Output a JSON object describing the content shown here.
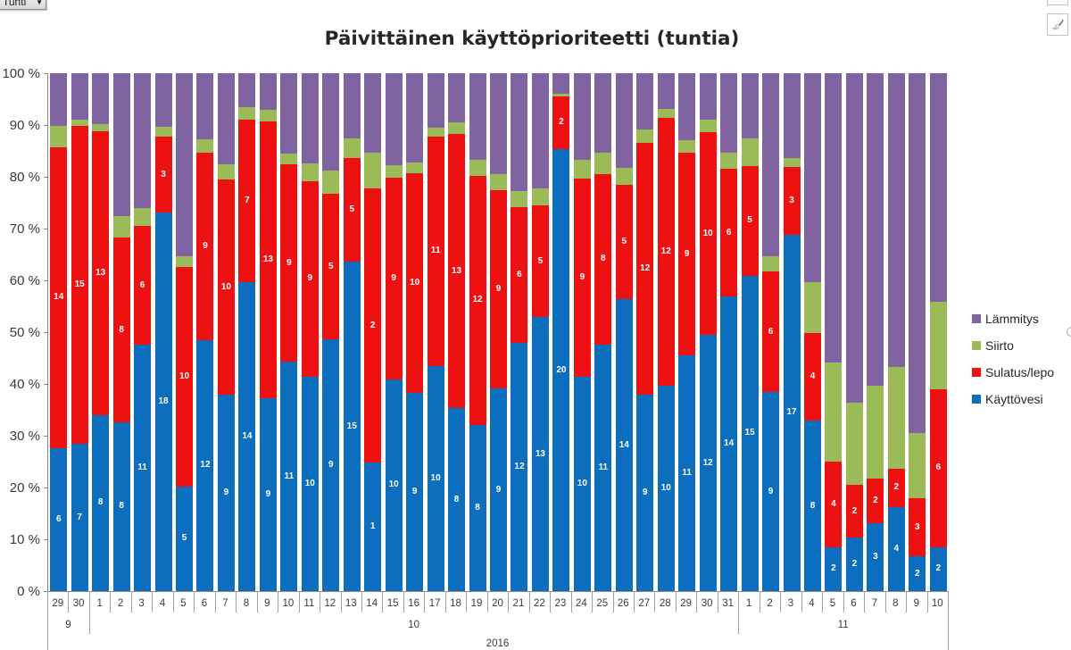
{
  "pivot_filter": {
    "label": "Tunti",
    "arrow": "▼"
  },
  "chart": {
    "title": "Päivittäinen käyttöprioriteetti (tuntia)",
    "buttons": [
      {
        "name": "chart-elements-button",
        "icon": "plus-icon-cut-off"
      },
      {
        "name": "chart-styles-button",
        "icon": "paintbrush-icon"
      }
    ]
  },
  "y_axis": {
    "tick_labels": [
      "100 %",
      "90 %",
      "80 %",
      "70 %",
      "60 %",
      "50 %",
      "40 %",
      "30 %",
      "20 %",
      "10 %",
      "0 %"
    ],
    "min": 0,
    "max": 100,
    "step": 10,
    "format": "percent"
  },
  "x_axis": {
    "day_labels": [
      "29",
      "30",
      "1",
      "2",
      "3",
      "4",
      "5",
      "6",
      "7",
      "8",
      "9",
      "10",
      "11",
      "12",
      "13",
      "14",
      "15",
      "16",
      "17",
      "18",
      "19",
      "20",
      "21",
      "22",
      "23",
      "24",
      "25",
      "26",
      "27",
      "28",
      "29",
      "30",
      "31",
      "1",
      "2",
      "3",
      "4",
      "5",
      "6",
      "7",
      "8",
      "9",
      "10"
    ],
    "month_groups": [
      {
        "label": "9",
        "span": 2
      },
      {
        "label": "10",
        "span": 31
      },
      {
        "label": "11",
        "span": 10
      }
    ],
    "year_label": "2016"
  },
  "legend": {
    "position": "right",
    "items": [
      {
        "label": "Lämmitys",
        "color": "#8064A2"
      },
      {
        "label": "Siirto",
        "color": "#9BBB59"
      },
      {
        "label": "Sulatus/lepo",
        "color": "#EE1111"
      },
      {
        "label": "Käyttövesi",
        "color": "#0D6EBD"
      }
    ]
  },
  "chart_data": {
    "type": "bar",
    "subtype": "stacked-100-percent",
    "title": "Päivittäinen käyttöprioriteetti (tuntia)",
    "xlabel": "",
    "ylabel": "",
    "ylim": [
      0,
      100
    ],
    "grid": false,
    "legend_position": "right",
    "categories": [
      "29",
      "30",
      "1",
      "2",
      "3",
      "4",
      "5",
      "6",
      "7",
      "8",
      "9",
      "10",
      "11",
      "12",
      "13",
      "14",
      "15",
      "16",
      "17",
      "18",
      "19",
      "20",
      "21",
      "22",
      "23",
      "24",
      "25",
      "26",
      "27",
      "28",
      "29",
      "30",
      "31",
      "1",
      "2",
      "3",
      "4",
      "5",
      "6",
      "7",
      "8",
      "9",
      "10"
    ],
    "category_months": [
      "9",
      "9",
      "10",
      "10",
      "10",
      "10",
      "10",
      "10",
      "10",
      "10",
      "10",
      "10",
      "10",
      "10",
      "10",
      "10",
      "10",
      "10",
      "10",
      "10",
      "10",
      "10",
      "10",
      "10",
      "10",
      "10",
      "10",
      "10",
      "10",
      "10",
      "10",
      "10",
      "10",
      "11",
      "11",
      "11",
      "11",
      "11",
      "11",
      "11",
      "11",
      "11",
      "11"
    ],
    "year": "2016",
    "series": [
      {
        "name": "Käyttövesi",
        "color": "#0D6EBD",
        "stack_order": 1,
        "segment_pct": [
          27.6,
          28.4,
          34.0,
          32.6,
          47.6,
          73.1,
          20.2,
          48.5,
          37.9,
          59.6,
          37.2,
          44.3,
          41.4,
          48.6,
          63.6,
          24.8,
          40.9,
          38.2,
          43.5,
          35.3,
          32.1,
          39.1,
          48.0,
          52.9,
          85.3,
          41.3,
          47.6,
          56.3,
          38.0,
          39.6,
          45.5,
          49.4,
          56.9,
          60.9,
          38.4,
          68.8,
          32.9,
          8.5,
          10.3,
          13.1,
          16.2,
          6.7,
          8.5
        ],
        "data_labels": [
          "6",
          "7",
          "8",
          "8",
          "11",
          "18",
          "5",
          "12",
          "9",
          "14",
          "9",
          "11",
          "10",
          "9",
          "15",
          "1",
          "10",
          "9",
          "10",
          "8",
          "8",
          "9",
          "12",
          "13",
          "20",
          "10",
          "11",
          "14",
          "9",
          "10",
          "11",
          "12",
          "14",
          "15",
          "9",
          "17",
          "8",
          "2",
          "2",
          "3",
          "4",
          "2",
          "2"
        ]
      },
      {
        "name": "Sulatus/lepo",
        "color": "#EE1111",
        "stack_order": 2,
        "segment_pct": [
          58.1,
          61.4,
          54.8,
          35.6,
          22.9,
          14.6,
          42.3,
          36.2,
          41.6,
          31.4,
          53.5,
          38.1,
          37.8,
          28.1,
          20.0,
          52.9,
          39.0,
          42.5,
          44.3,
          53.0,
          48.1,
          38.3,
          26.1,
          21.5,
          10.3,
          38.3,
          33.0,
          22.2,
          48.5,
          51.7,
          39.1,
          39.2,
          24.6,
          21.2,
          23.3,
          13.1,
          16.9,
          16.5,
          10.2,
          8.6,
          7.5,
          11.2,
          30.5
        ],
        "data_labels": [
          "14",
          "15",
          "13",
          "8",
          "6",
          "3",
          "10",
          "9",
          "10",
          "7",
          "13",
          "9",
          "9",
          "5",
          "5",
          "2",
          "9",
          "10",
          "11",
          "13",
          "12",
          "9",
          "6",
          "5",
          "2",
          "9",
          "8",
          "5",
          "12",
          "12",
          "9",
          "10",
          "6",
          "5",
          "6",
          "3",
          "4",
          "4",
          "2",
          "2",
          "2",
          "3",
          "6"
        ]
      },
      {
        "name": "Siirto",
        "color": "#9BBB59",
        "stack_order": 3,
        "segment_pct": [
          4.1,
          1.3,
          1.4,
          4.2,
          3.5,
          1.9,
          2.1,
          2.6,
          2.9,
          2.5,
          2.3,
          2.1,
          3.4,
          4.5,
          3.9,
          7.0,
          2.3,
          2.1,
          1.7,
          2.3,
          3.0,
          3.1,
          3.2,
          3.4,
          0.5,
          3.6,
          4.1,
          3.2,
          2.7,
          1.8,
          2.5,
          2.4,
          3.2,
          5.4,
          2.9,
          1.8,
          9.9,
          19.1,
          15.8,
          17.9,
          19.6,
          12.6,
          16.8
        ],
        "data_labels": [
          "",
          "",
          "",
          "",
          "",
          "",
          "",
          "",
          "",
          "",
          "",
          "",
          "",
          "",
          "",
          "",
          "",
          "",
          "",
          "",
          "",
          "",
          "",
          "",
          "",
          "",
          "",
          "",
          "",
          "",
          "",
          "",
          "",
          "",
          "",
          "",
          "",
          "",
          "",
          "",
          "",
          "",
          ""
        ]
      },
      {
        "name": "Lämmitys",
        "color": "#8064A2",
        "stack_order": 4,
        "segment_pct": [
          10.2,
          8.9,
          9.8,
          27.6,
          26.0,
          10.4,
          35.4,
          12.7,
          17.6,
          6.5,
          7.0,
          15.5,
          17.4,
          18.8,
          12.5,
          15.3,
          17.8,
          17.2,
          10.5,
          9.4,
          16.8,
          19.5,
          22.7,
          22.2,
          3.9,
          16.8,
          15.3,
          18.3,
          10.8,
          6.9,
          12.9,
          9.0,
          15.3,
          12.5,
          35.4,
          16.3,
          40.3,
          55.9,
          63.7,
          60.4,
          56.7,
          69.5,
          44.2
        ],
        "data_labels": [
          "",
          "",
          "",
          "",
          "",
          "",
          "",
          "",
          "",
          "",
          "",
          "",
          "",
          "",
          "",
          "",
          "",
          "",
          "",
          "",
          "",
          "",
          "",
          "",
          "",
          "",
          "",
          "",
          "",
          "",
          "",
          "",
          "",
          "",
          "",
          "",
          "",
          "",
          "",
          "",
          "",
          "",
          ""
        ]
      }
    ]
  }
}
